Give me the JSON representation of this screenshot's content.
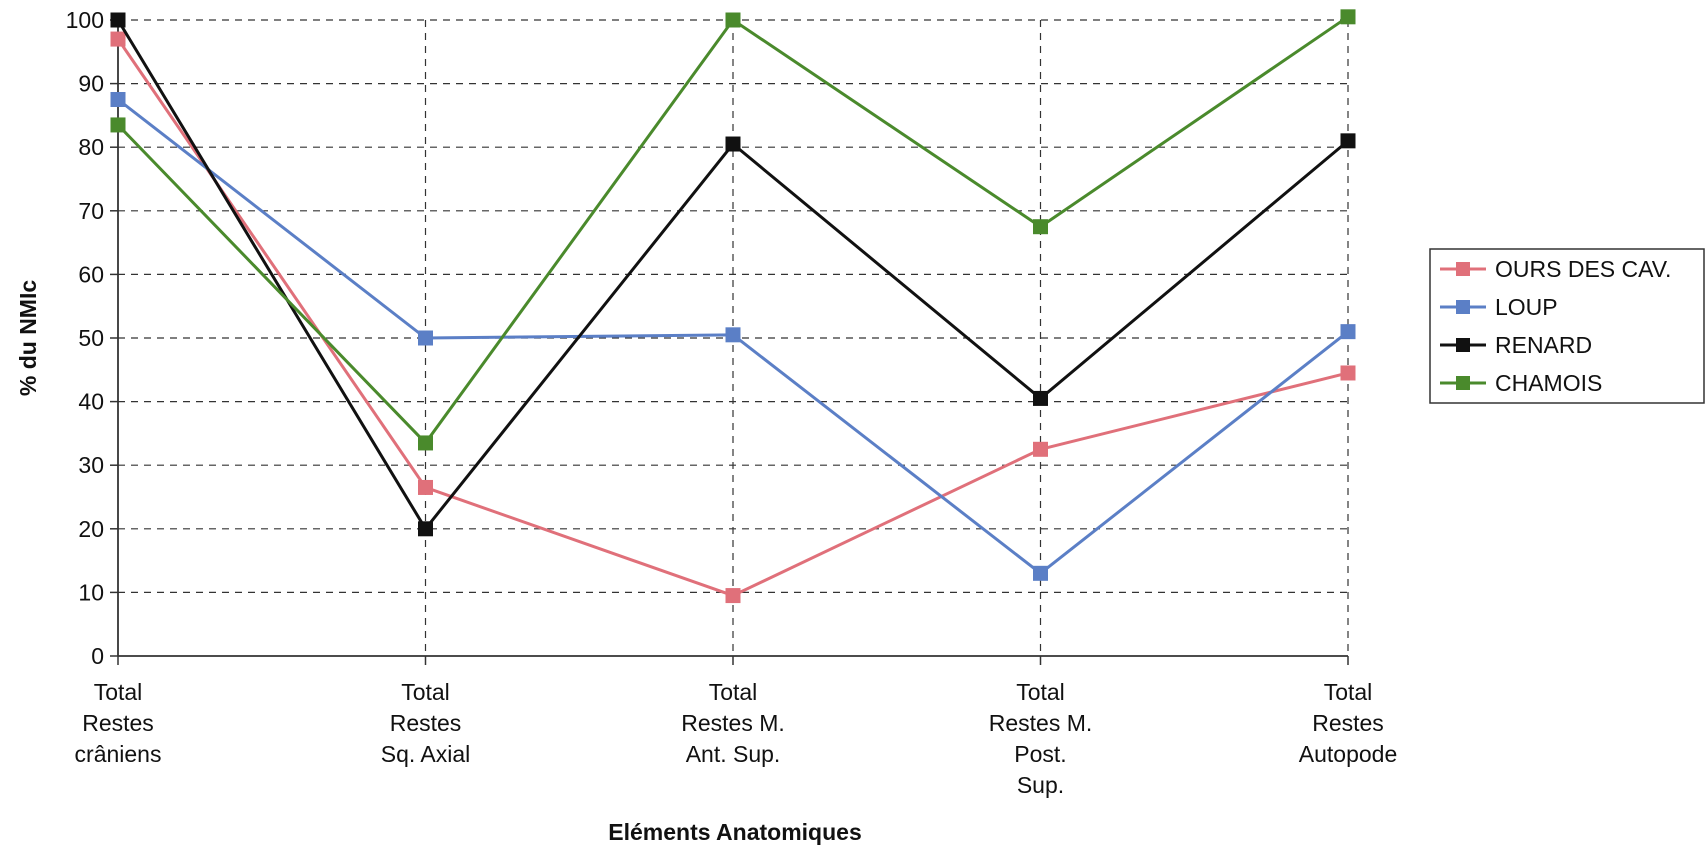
{
  "chart_data": {
    "type": "line",
    "title": "",
    "xlabel": "Eléments Anatomiques",
    "ylabel": "% du NMIc",
    "ylim": [
      0,
      100
    ],
    "yticks": [
      0,
      10,
      20,
      30,
      40,
      50,
      60,
      70,
      80,
      90,
      100
    ],
    "grid": true,
    "legend_position": "right",
    "categories": [
      [
        "Total",
        "Restes",
        "crâniens"
      ],
      [
        "Total",
        "Restes",
        "Sq. Axial"
      ],
      [
        "Total",
        "Restes M.",
        "Ant. Sup."
      ],
      [
        "Total",
        "Restes M.",
        "Post.",
        "Sup."
      ],
      [
        "Total",
        "Restes",
        "Autopode"
      ]
    ],
    "series": [
      {
        "name": "OURS DES CAV.",
        "color": "#e0707a",
        "values": [
          97,
          26.5,
          9.5,
          32.5,
          44.5
        ]
      },
      {
        "name": "LOUP",
        "color": "#5b7fc6",
        "values": [
          87.5,
          50,
          50.5,
          13,
          51
        ]
      },
      {
        "name": "RENARD",
        "color": "#111111",
        "values": [
          100,
          20,
          80.5,
          40.5,
          81
        ]
      },
      {
        "name": "CHAMOIS",
        "color": "#4a8a2c",
        "values": [
          83.5,
          33.5,
          100,
          67.5,
          100.5
        ]
      }
    ]
  }
}
